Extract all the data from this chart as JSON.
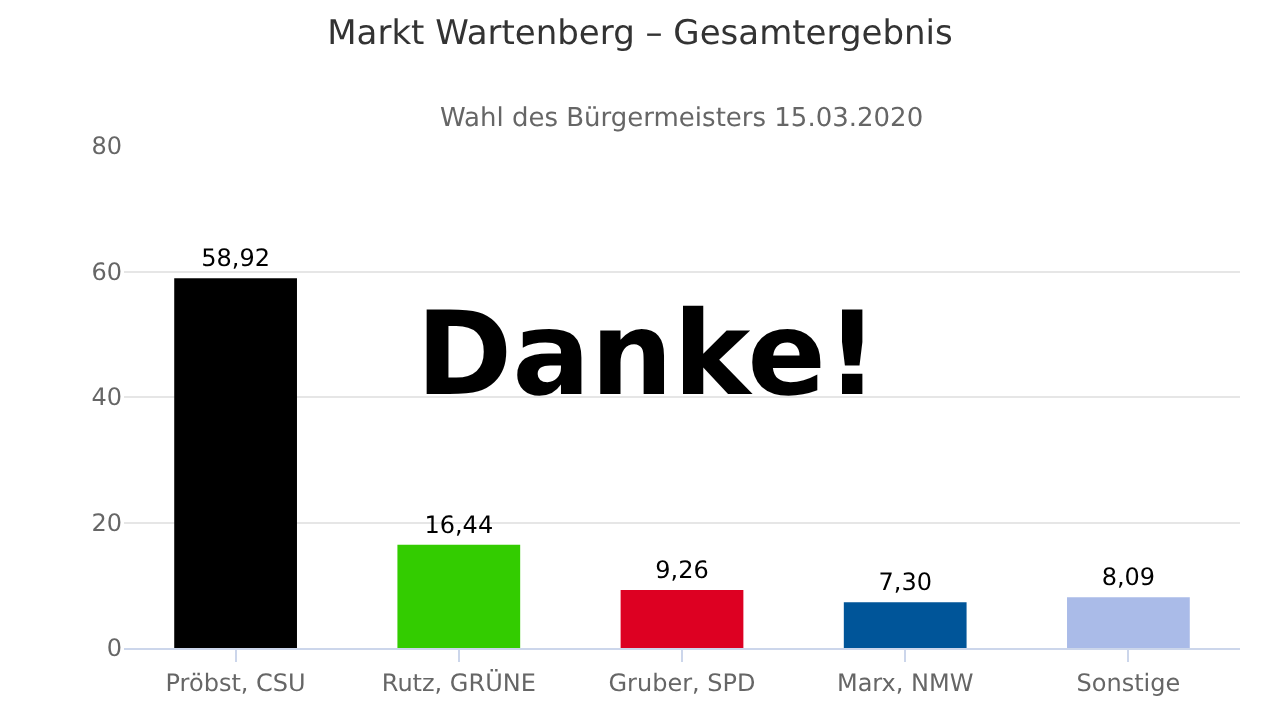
{
  "chart_data": {
    "type": "bar",
    "title": "Markt Wartenberg – Gesamtergebnis",
    "subtitle": "Wahl des Bürgermeisters 15.03.2020",
    "categories": [
      "Pröbst, CSU",
      "Rutz, GRÜNE",
      "Gruber, SPD",
      "Marx, NMW",
      "Sonstige"
    ],
    "values": [
      58.92,
      16.44,
      9.26,
      7.3,
      8.09
    ],
    "value_labels": [
      "58,92",
      "16,44",
      "9,26",
      "7,30",
      "8,09"
    ],
    "colors": [
      "#000000",
      "#33cc00",
      "#dd0022",
      "#005599",
      "#aabbe8"
    ],
    "ylim": [
      0,
      80
    ],
    "yticks": [
      0,
      20,
      40,
      60,
      80
    ],
    "grid": "y",
    "annotations": [
      "Danke!"
    ]
  }
}
